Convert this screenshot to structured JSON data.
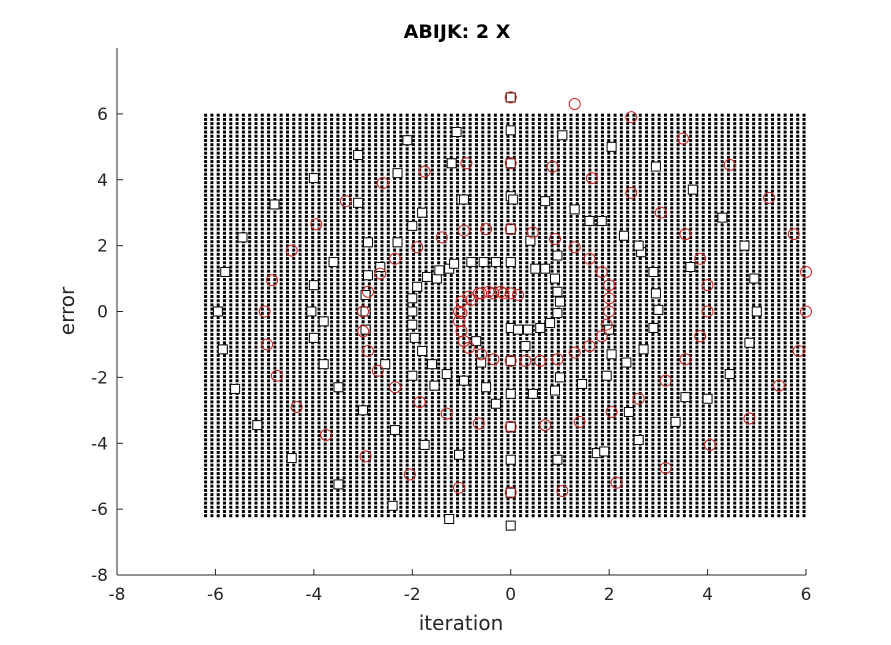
{
  "chart_data": {
    "type": "scatter",
    "title": "ABIJK: 2 X",
    "xlabel": "iteration",
    "ylabel": "error",
    "xlim": [
      -8,
      6
    ],
    "ylim": [
      -8,
      8
    ],
    "xticks": [
      -8,
      -6,
      -4,
      -2,
      0,
      2,
      4,
      6
    ],
    "yticks": [
      -8,
      -6,
      -4,
      -2,
      0,
      2,
      4,
      6
    ],
    "grid": false,
    "box": false,
    "dot_field": {
      "x_range": [
        -6.2,
        6.0
      ],
      "y_range": [
        -6.2,
        6.0
      ],
      "x_step": 0.128,
      "y_step": 0.128,
      "color": "#000000"
    },
    "series": [
      {
        "marker": "square",
        "color": "#000000",
        "points": [
          [
            0,
            6.5
          ],
          [
            0,
            5.5
          ],
          [
            0,
            4.5
          ],
          [
            0,
            3.5
          ],
          [
            0,
            2.5
          ],
          [
            0,
            1.5
          ],
          [
            0,
            -0.5
          ],
          [
            0,
            -1.5
          ],
          [
            0,
            -2.5
          ],
          [
            0,
            -3.5
          ],
          [
            0,
            -4.5
          ],
          [
            0,
            -5.5
          ],
          [
            0,
            -6.5
          ],
          [
            -1.1,
            5.45
          ],
          [
            -2.1,
            5.2
          ],
          [
            -3.1,
            4.75
          ],
          [
            -4.0,
            4.05
          ],
          [
            -4.8,
            3.25
          ],
          [
            -5.45,
            2.25
          ],
          [
            -5.8,
            1.2
          ],
          [
            -5.95,
            0
          ],
          [
            -5.85,
            -1.15
          ],
          [
            -5.6,
            -2.35
          ],
          [
            -5.15,
            -3.45
          ],
          [
            -4.45,
            -4.45
          ],
          [
            -3.5,
            -5.25
          ],
          [
            -2.4,
            -5.9
          ],
          [
            -1.25,
            -6.3
          ],
          [
            -1.2,
            4.5
          ],
          [
            -2.3,
            4.2
          ],
          [
            -3.1,
            3.3
          ],
          [
            -3.6,
            1.5
          ],
          [
            -3.8,
            -0.3
          ],
          [
            -3.8,
            -1.6
          ],
          [
            -3.5,
            -2.3
          ],
          [
            -3.0,
            -3.0
          ],
          [
            -2.35,
            -3.6
          ],
          [
            -1.75,
            -4.05
          ],
          [
            -1.05,
            -4.35
          ],
          [
            1.05,
            5.35
          ],
          [
            2.05,
            5.0
          ],
          [
            2.95,
            4.4
          ],
          [
            3.7,
            3.7
          ],
          [
            4.3,
            2.85
          ],
          [
            4.75,
            2.0
          ],
          [
            4.95,
            1.0
          ],
          [
            5.0,
            0.0
          ],
          [
            4.85,
            -0.95
          ],
          [
            4.45,
            -1.9
          ],
          [
            4.0,
            -2.65
          ],
          [
            3.35,
            -3.35
          ],
          [
            2.6,
            -3.9
          ],
          [
            1.75,
            -4.3
          ],
          [
            0.95,
            -4.5
          ],
          [
            1.3,
            3.1
          ],
          [
            1.85,
            2.75
          ],
          [
            2.3,
            2.3
          ],
          [
            2.65,
            1.8
          ],
          [
            2.9,
            1.2
          ],
          [
            2.95,
            0.55
          ],
          [
            3.0,
            0.05
          ],
          [
            2.9,
            -0.5
          ],
          [
            2.7,
            -1.15
          ],
          [
            2.35,
            -1.55
          ],
          [
            1.95,
            -1.95
          ],
          [
            1.45,
            -2.2
          ],
          [
            0.9,
            -2.4
          ],
          [
            0.45,
            -2.5
          ],
          [
            -1.0,
            3.4
          ],
          [
            -1.8,
            3.0
          ],
          [
            -2.0,
            2.6
          ],
          [
            -2.3,
            2.1
          ],
          [
            -2.9,
            2.1
          ],
          [
            -2.65,
            1.35
          ],
          [
            -2.9,
            1.1
          ],
          [
            -2.95,
            0.5
          ],
          [
            -2.95,
            0.0
          ],
          [
            -2.95,
            -0.55
          ],
          [
            -2.55,
            -1.6
          ],
          [
            -2.0,
            -1.95
          ],
          [
            -1.55,
            -2.25
          ],
          [
            -1.5,
            1.0
          ],
          [
            -1.25,
            1.3
          ],
          [
            -0.55,
            1.5
          ],
          [
            -0.3,
            1.5
          ],
          [
            0.5,
            1.3
          ],
          [
            0.9,
            1.0
          ],
          [
            0.95,
            0.6
          ],
          [
            1.0,
            0.3
          ],
          [
            0.95,
            -0.05
          ],
          [
            0.8,
            -0.35
          ],
          [
            0.6,
            -0.5
          ],
          [
            0.35,
            -0.55
          ],
          [
            0.15,
            -0.55
          ],
          [
            -2.0,
            0.0
          ],
          [
            -2.0,
            -0.4
          ],
          [
            -1.95,
            -0.8
          ],
          [
            -1.8,
            -1.2
          ],
          [
            -1.6,
            -1.6
          ],
          [
            -1.3,
            -1.9
          ],
          [
            -0.95,
            -2.1
          ],
          [
            -0.5,
            -2.3
          ],
          [
            -2.0,
            0.4
          ],
          [
            -1.9,
            0.75
          ],
          [
            -1.7,
            1.05
          ],
          [
            -1.45,
            1.25
          ],
          [
            -1.15,
            1.45
          ],
          [
            -0.8,
            1.5
          ],
          [
            -0.95,
            3.4
          ],
          [
            0.05,
            3.4
          ],
          [
            0.7,
            3.35
          ],
          [
            1.6,
            2.75
          ],
          [
            2.6,
            2.0
          ],
          [
            3.65,
            1.35
          ],
          [
            3.55,
            -2.6
          ],
          [
            2.4,
            -3.05
          ],
          [
            1.9,
            -4.25
          ],
          [
            -0.3,
            -2.8
          ],
          [
            0.4,
            2.15
          ],
          [
            -4.0,
            0.8
          ],
          [
            -4.0,
            -0.8
          ],
          [
            -4.05,
            0.0
          ],
          [
            2.0,
            -0.55
          ],
          [
            2.05,
            -1.3
          ],
          [
            1.0,
            -2.0
          ],
          [
            0.3,
            -1.05
          ],
          [
            -0.7,
            -0.9
          ],
          [
            -0.6,
            -1.55
          ],
          [
            0.7,
            1.3
          ],
          [
            0.95,
            1.7
          ]
        ]
      },
      {
        "marker": "circle",
        "color": "#cc2222",
        "points": [
          [
            0,
            6.5
          ],
          [
            1.3,
            6.3
          ],
          [
            2.45,
            5.9
          ],
          [
            3.5,
            5.25
          ],
          [
            4.45,
            4.45
          ],
          [
            5.25,
            3.45
          ],
          [
            5.75,
            2.35
          ],
          [
            6.0,
            1.2
          ],
          [
            6.0,
            0
          ],
          [
            5.85,
            -1.2
          ],
          [
            5.45,
            -2.25
          ],
          [
            4.85,
            -3.25
          ],
          [
            4.05,
            -4.05
          ],
          [
            3.15,
            -4.75
          ],
          [
            2.15,
            -5.2
          ],
          [
            1.05,
            -5.45
          ],
          [
            0,
            -5.5
          ],
          [
            -1.05,
            -5.35
          ],
          [
            -2.05,
            -4.95
          ],
          [
            -2.95,
            -4.4
          ],
          [
            -3.75,
            -3.75
          ],
          [
            -4.35,
            -2.9
          ],
          [
            -4.75,
            -1.95
          ],
          [
            -4.95,
            -1.0
          ],
          [
            -5.0,
            0
          ],
          [
            -4.85,
            0.95
          ],
          [
            -4.45,
            1.85
          ],
          [
            -3.95,
            2.65
          ],
          [
            -3.35,
            3.35
          ],
          [
            -2.6,
            3.9
          ],
          [
            -1.75,
            4.25
          ],
          [
            -0.9,
            4.5
          ],
          [
            0,
            4.5
          ],
          [
            0.85,
            4.4
          ],
          [
            1.65,
            4.05
          ],
          [
            2.45,
            3.6
          ],
          [
            3.05,
            3.0
          ],
          [
            3.55,
            2.35
          ],
          [
            3.85,
            1.6
          ],
          [
            4.0,
            0.8
          ],
          [
            4.0,
            0
          ],
          [
            3.85,
            -0.75
          ],
          [
            3.55,
            -1.45
          ],
          [
            3.15,
            -2.1
          ],
          [
            2.6,
            -2.65
          ],
          [
            2.05,
            -3.05
          ],
          [
            1.4,
            -3.35
          ],
          [
            0.7,
            -3.45
          ],
          [
            0,
            -3.5
          ],
          [
            -0.65,
            -3.4
          ],
          [
            -1.3,
            -3.1
          ],
          [
            -1.85,
            -2.75
          ],
          [
            -2.35,
            -2.3
          ],
          [
            -2.7,
            -1.8
          ],
          [
            -2.9,
            -1.2
          ],
          [
            -3.0,
            -0.6
          ],
          [
            -3.0,
            0
          ],
          [
            -2.9,
            0.6
          ],
          [
            -2.65,
            1.15
          ],
          [
            -2.35,
            1.6
          ],
          [
            -1.9,
            1.95
          ],
          [
            -1.4,
            2.25
          ],
          [
            -0.95,
            2.45
          ],
          [
            -0.5,
            2.5
          ],
          [
            0,
            2.5
          ],
          [
            0.45,
            2.4
          ],
          [
            0.9,
            2.2
          ],
          [
            1.3,
            1.95
          ],
          [
            1.6,
            1.6
          ],
          [
            1.85,
            1.2
          ],
          [
            2.0,
            0.8
          ],
          [
            2.0,
            0.4
          ],
          [
            2.0,
            0
          ],
          [
            1.95,
            -0.4
          ],
          [
            1.85,
            -0.75
          ],
          [
            1.6,
            -1.05
          ],
          [
            1.3,
            -1.25
          ],
          [
            0.95,
            -1.45
          ],
          [
            0.6,
            -1.5
          ],
          [
            0.3,
            -1.5
          ],
          [
            0,
            -1.5
          ],
          [
            -0.35,
            -1.45
          ],
          [
            -0.6,
            -1.3
          ],
          [
            -0.85,
            -1.1
          ],
          [
            -0.95,
            -0.9
          ],
          [
            -1.0,
            -0.6
          ],
          [
            -1.05,
            -0.3
          ],
          [
            -1.05,
            0
          ],
          [
            -1.0,
            0.3
          ],
          [
            -0.85,
            0.45
          ],
          [
            -0.65,
            0.55
          ],
          [
            -0.45,
            0.6
          ],
          [
            -0.2,
            0.6
          ],
          [
            0,
            0.55
          ],
          [
            -1.0,
            -0.05
          ],
          [
            -0.8,
            0.35
          ],
          [
            -0.6,
            0.55
          ],
          [
            -0.35,
            0.55
          ],
          [
            -0.15,
            0.55
          ],
          [
            0.15,
            0.5
          ]
        ]
      }
    ]
  }
}
